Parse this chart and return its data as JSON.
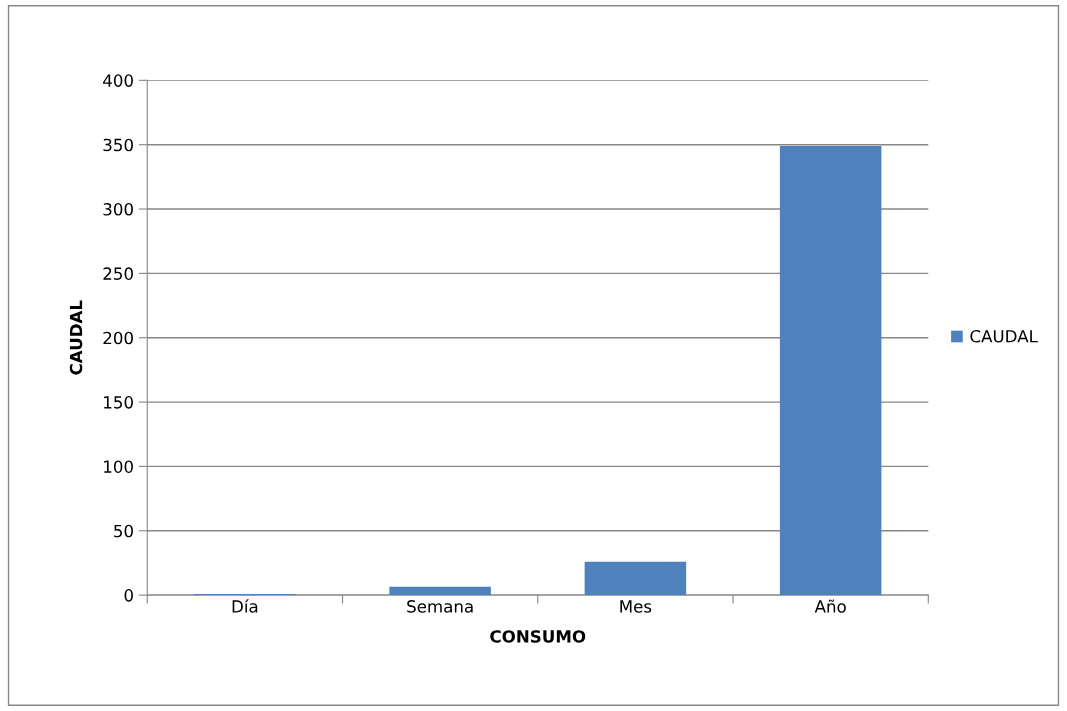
{
  "chart_data": {
    "type": "bar",
    "xlabel": "CONSUMO",
    "ylabel": "CAUDAL",
    "categories": [
      "Día",
      "Semana",
      "Mes",
      "Año"
    ],
    "series": [
      {
        "name": "CAUDAL",
        "color": "#4f81bd",
        "values": [
          0.9,
          6.5,
          26,
          349
        ]
      }
    ],
    "ylim": [
      0,
      400
    ],
    "yticks": [
      0,
      50,
      100,
      150,
      200,
      250,
      300,
      350,
      400
    ],
    "grid": "y",
    "legend": "right"
  }
}
